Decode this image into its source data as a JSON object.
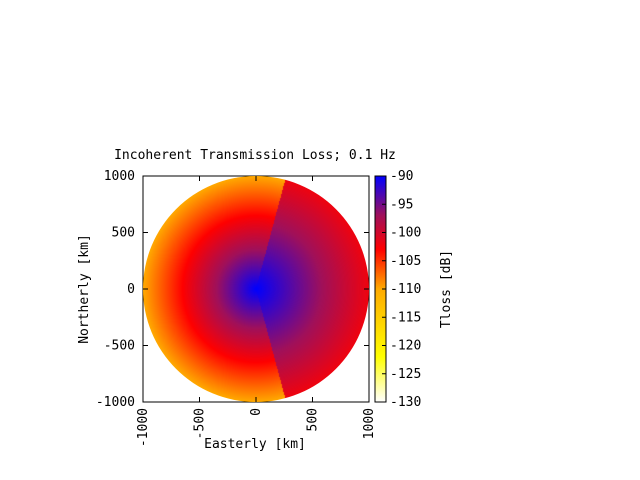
{
  "chart_data": {
    "type": "heatmap",
    "title": "Incoherent Transmission Loss; 0.1 Hz",
    "xlabel": "Easterly [km]",
    "ylabel": "Northerly [km]",
    "xlim": [
      -1000,
      1000
    ],
    "ylim": [
      -1000,
      1000
    ],
    "xticks": [
      -1000,
      -500,
      0,
      500,
      1000
    ],
    "yticks": [
      -1000,
      -500,
      0,
      500,
      1000
    ],
    "xtick_labels": [
      "-1000",
      "-500",
      "0",
      "500",
      "1000"
    ],
    "ytick_labels": [
      "-1000",
      "-500",
      "0",
      "500",
      "1000"
    ],
    "domain_shape": "circle",
    "domain_radius_km": 1000,
    "grid": false,
    "colorbar": {
      "label": "Tloss [dB]",
      "range": [
        -130,
        -90
      ],
      "ticks": [
        -90,
        -95,
        -100,
        -105,
        -110,
        -115,
        -120,
        -125,
        -130
      ],
      "tick_labels": [
        "-90",
        "-95",
        "-100",
        "-105",
        "-110",
        "-115",
        "-120",
        "-125",
        "-130"
      ],
      "colormap": "white-yellow-orange-red-purple-blue",
      "stops": [
        {
          "value": -130,
          "color": "#ffffff"
        },
        {
          "value": -122,
          "color": "#ffff00"
        },
        {
          "value": -110,
          "color": "#ffaa00"
        },
        {
          "value": -103,
          "color": "#ff0000"
        },
        {
          "value": -97,
          "color": "#a0105a"
        },
        {
          "value": -90,
          "color": "#0000ff"
        }
      ]
    },
    "field_description": {
      "source": [
        0,
        0
      ],
      "source_level_db": -90,
      "west_attenuation_db_per_1000km": 20,
      "east_attenuation_db_per_1000km": 12,
      "east_boundary_angle_deg_from_north": [
        15,
        165
      ]
    }
  }
}
